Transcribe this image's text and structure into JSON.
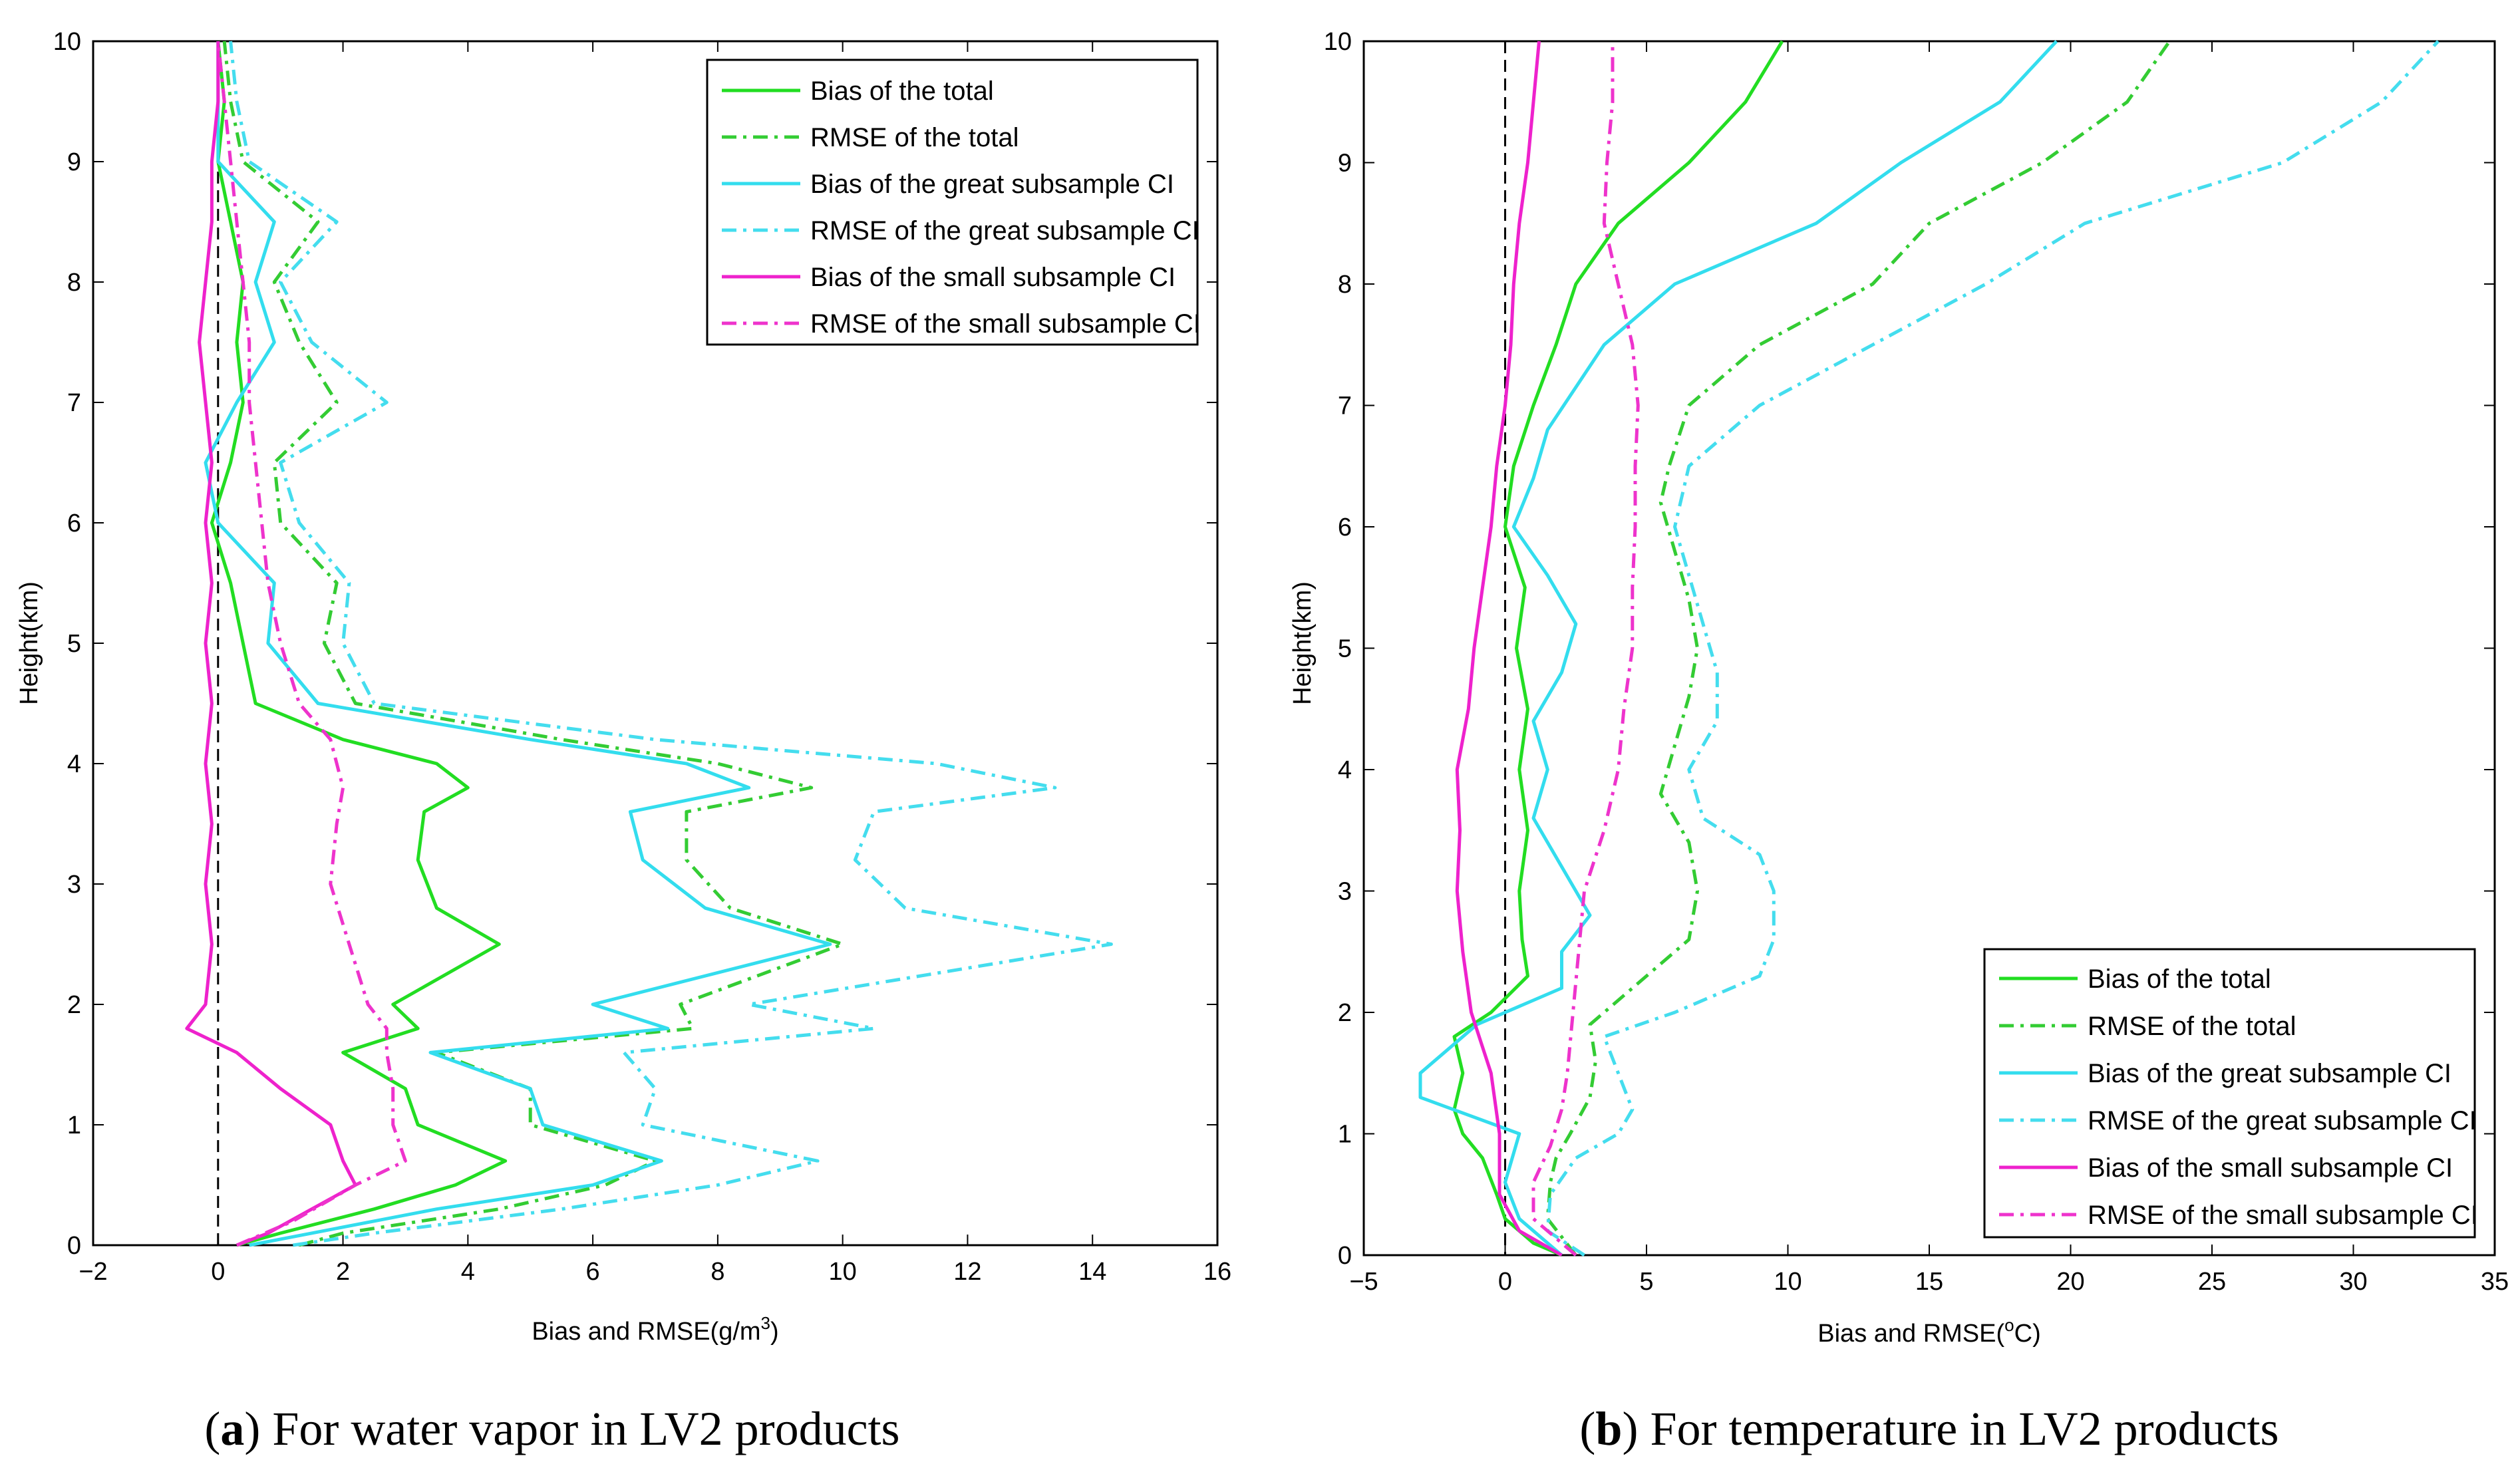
{
  "chart_data": [
    {
      "type": "line",
      "panel": "a",
      "caption_letter": "a",
      "caption_text": "For water vapor in LV2 products",
      "xlabel_main": "Bias and RMSE(g/m",
      "xlabel_sup": "3",
      "xlabel_tail": ")",
      "ylabel": "Height(km)",
      "xlim": [
        -2,
        16
      ],
      "ylim": [
        0,
        10
      ],
      "xticks": [
        "-2",
        "0",
        "2",
        "4",
        "6",
        "8",
        "10",
        "12",
        "14",
        "16"
      ],
      "yticks": [
        "0",
        "1",
        "2",
        "3",
        "4",
        "5",
        "6",
        "7",
        "8",
        "9",
        "10"
      ],
      "legend_position": "top-right",
      "zero_line": 0,
      "series": [
        {
          "name": "Bias of the total",
          "color": "#22dd22",
          "dash": "solid",
          "y": [
            0,
            0.1,
            0.3,
            0.5,
            0.7,
            1.0,
            1.3,
            1.6,
            1.8,
            2.0,
            2.5,
            2.8,
            3.2,
            3.6,
            3.8,
            4.0,
            4.2,
            4.5,
            5.0,
            5.5,
            6.0,
            6.5,
            7.0,
            7.5,
            8.0,
            8.5,
            9.0,
            9.5,
            10.0
          ],
          "x": [
            0.3,
            1.0,
            2.5,
            3.8,
            4.6,
            3.2,
            3.0,
            2.0,
            3.2,
            2.8,
            4.5,
            3.5,
            3.2,
            3.3,
            4.0,
            3.5,
            2.0,
            0.6,
            0.4,
            0.2,
            -0.1,
            0.2,
            0.4,
            0.3,
            0.4,
            0.2,
            0.0,
            0.1,
            0.0
          ]
        },
        {
          "name": "RMSE of the total",
          "color": "#33cc33",
          "dash": "dashdot",
          "y": [
            0,
            0.1,
            0.3,
            0.5,
            0.7,
            1.0,
            1.3,
            1.6,
            1.8,
            2.0,
            2.5,
            2.8,
            3.2,
            3.6,
            3.8,
            4.0,
            4.2,
            4.5,
            5.0,
            5.5,
            6.0,
            6.5,
            7.0,
            7.5,
            8.0,
            8.5,
            9.0,
            9.5,
            10.0
          ],
          "x": [
            1.3,
            2.0,
            4.5,
            6.2,
            7.0,
            5.0,
            5.0,
            3.5,
            7.6,
            7.4,
            10.0,
            8.2,
            7.5,
            7.5,
            9.5,
            8.0,
            5.5,
            2.2,
            1.7,
            1.9,
            1.0,
            0.9,
            1.9,
            1.3,
            0.9,
            1.6,
            0.4,
            0.2,
            0.1
          ]
        },
        {
          "name": "Bias of the great subsample CI",
          "color": "#33ddee",
          "dash": "solid",
          "y": [
            0,
            0.1,
            0.3,
            0.5,
            0.7,
            1.0,
            1.3,
            1.6,
            1.8,
            2.0,
            2.5,
            2.8,
            3.2,
            3.6,
            3.8,
            4.0,
            4.2,
            4.5,
            5.0,
            5.5,
            6.0,
            6.5,
            7.0,
            7.5,
            8.0,
            8.5,
            9.0,
            9.5,
            10.0
          ],
          "x": [
            0.5,
            1.5,
            3.5,
            6.0,
            7.1,
            5.2,
            5.0,
            3.4,
            7.2,
            6.0,
            9.8,
            7.8,
            6.8,
            6.6,
            8.5,
            7.5,
            5.0,
            1.6,
            0.8,
            0.9,
            0.0,
            -0.2,
            0.3,
            0.9,
            0.6,
            0.9,
            0.0,
            0.0,
            0.0
          ]
        },
        {
          "name": "RMSE of the great subsample CI",
          "color": "#44ddee",
          "dash": "dashdot",
          "y": [
            0,
            0.1,
            0.3,
            0.5,
            0.7,
            1.0,
            1.3,
            1.6,
            1.8,
            2.0,
            2.5,
            2.8,
            3.2,
            3.6,
            3.8,
            4.0,
            4.2,
            4.5,
            5.0,
            5.5,
            6.0,
            6.5,
            7.0,
            7.5,
            8.0,
            8.5,
            9.0,
            9.5,
            10.0
          ],
          "x": [
            1.2,
            2.5,
            5.5,
            8.0,
            9.6,
            6.8,
            7.0,
            6.5,
            10.5,
            8.5,
            14.3,
            11.0,
            10.2,
            10.5,
            13.4,
            11.5,
            7.0,
            2.5,
            2.0,
            2.1,
            1.3,
            1.0,
            2.7,
            1.5,
            1.0,
            1.9,
            0.5,
            0.3,
            0.2
          ]
        },
        {
          "name": "Bias of the small subsample CI",
          "color": "#ee22cc",
          "dash": "solid",
          "y": [
            0,
            0.1,
            0.3,
            0.5,
            0.7,
            1.0,
            1.3,
            1.6,
            1.8,
            2.0,
            2.5,
            3.0,
            3.5,
            4.0,
            4.5,
            5.0,
            5.5,
            6.0,
            6.5,
            7.0,
            7.5,
            8.0,
            8.5,
            9.0,
            9.5,
            10.0
          ],
          "x": [
            0.3,
            0.8,
            1.5,
            2.2,
            2.0,
            1.8,
            1.0,
            0.3,
            -0.5,
            -0.2,
            -0.1,
            -0.2,
            -0.1,
            -0.2,
            -0.1,
            -0.2,
            -0.1,
            -0.2,
            -0.1,
            -0.2,
            -0.3,
            -0.2,
            -0.1,
            -0.1,
            0.0,
            0.0
          ]
        },
        {
          "name": "RMSE of the small subsample CI",
          "color": "#ee33cc",
          "dash": "dashdot",
          "y": [
            0,
            0.2,
            0.5,
            0.7,
            1.0,
            1.3,
            1.6,
            1.8,
            2.0,
            2.5,
            3.0,
            3.5,
            3.8,
            4.2,
            4.5,
            5.0,
            5.5,
            6.0,
            6.5,
            7.0,
            7.5,
            8.0,
            8.5,
            9.0,
            9.5,
            10.0
          ],
          "x": [
            0.3,
            1.2,
            2.2,
            3.0,
            2.8,
            2.8,
            2.7,
            2.7,
            2.4,
            2.1,
            1.8,
            1.9,
            2.0,
            1.8,
            1.3,
            1.0,
            0.8,
            0.7,
            0.6,
            0.5,
            0.5,
            0.4,
            0.3,
            0.2,
            0.1,
            0.0
          ]
        }
      ]
    },
    {
      "type": "line",
      "panel": "b",
      "caption_letter": "b",
      "caption_text": "For temperature in LV2 products",
      "xlabel_main": "Bias and RMSE(",
      "xlabel_sup": "o",
      "xlabel_tail": "C)",
      "ylabel": "Height(km)",
      "xlim": [
        -5,
        35
      ],
      "ylim": [
        0,
        10
      ],
      "xticks": [
        "-5",
        "0",
        "5",
        "10",
        "15",
        "20",
        "25",
        "30",
        "35"
      ],
      "yticks": [
        "0",
        "1",
        "2",
        "3",
        "4",
        "5",
        "6",
        "7",
        "8",
        "9",
        "10"
      ],
      "legend_position": "bottom-right",
      "zero_line": 0,
      "series": [
        {
          "name": "Bias of the total",
          "color": "#22dd22",
          "dash": "solid",
          "y": [
            0,
            0.1,
            0.3,
            0.5,
            0.8,
            1.0,
            1.2,
            1.5,
            1.8,
            2.0,
            2.3,
            2.6,
            3.0,
            3.5,
            4.0,
            4.5,
            5.0,
            5.5,
            6.0,
            6.5,
            7.0,
            7.5,
            8.0,
            8.5,
            9.0,
            9.5,
            10.0
          ],
          "x": [
            2.0,
            1.0,
            0.0,
            -0.3,
            -0.8,
            -1.5,
            -1.8,
            -1.5,
            -1.8,
            -0.5,
            0.8,
            0.6,
            0.5,
            0.8,
            0.5,
            0.8,
            0.4,
            0.7,
            0.0,
            0.3,
            1.0,
            1.8,
            2.5,
            4.0,
            6.5,
            8.5,
            9.8
          ]
        },
        {
          "name": "RMSE of the total",
          "color": "#33cc33",
          "dash": "dashdot",
          "y": [
            0,
            0.3,
            0.6,
            0.8,
            1.0,
            1.3,
            1.6,
            1.9,
            2.2,
            2.6,
            3.0,
            3.4,
            3.8,
            4.2,
            4.6,
            5.0,
            5.4,
            5.8,
            6.2,
            6.5,
            7.0,
            7.5,
            8.0,
            8.5,
            9.0,
            9.5,
            10.0
          ],
          "x": [
            2.5,
            1.5,
            1.6,
            1.8,
            2.3,
            3.0,
            3.2,
            3.0,
            4.5,
            6.5,
            6.8,
            6.5,
            5.5,
            6.0,
            6.5,
            6.8,
            6.5,
            6.0,
            5.5,
            5.8,
            6.5,
            9.0,
            13.0,
            15.0,
            19.0,
            22.0,
            23.5
          ]
        },
        {
          "name": "Bias of the great subsample CI",
          "color": "#33ddee",
          "dash": "solid",
          "y": [
            0,
            0.3,
            0.6,
            1.0,
            1.3,
            1.5,
            1.7,
            1.9,
            2.2,
            2.5,
            2.8,
            3.2,
            3.6,
            4.0,
            4.4,
            4.8,
            5.2,
            5.6,
            6.0,
            6.4,
            6.8,
            7.5,
            8.0,
            8.5,
            9.0,
            9.5,
            10.0
          ],
          "x": [
            2.0,
            0.5,
            0.0,
            0.5,
            -3.0,
            -3.0,
            -2.0,
            -1.0,
            2.0,
            2.0,
            3.0,
            2.0,
            1.0,
            1.5,
            1.0,
            2.0,
            2.5,
            1.5,
            0.3,
            1.0,
            1.5,
            3.5,
            6.0,
            11.0,
            14.0,
            17.5,
            19.5
          ]
        },
        {
          "name": "RMSE of the great subsample CI",
          "color": "#44ddee",
          "dash": "dashdot",
          "y": [
            0,
            0.2,
            0.5,
            0.8,
            1.0,
            1.2,
            1.5,
            1.8,
            2.0,
            2.3,
            2.6,
            3.0,
            3.3,
            3.6,
            4.0,
            4.4,
            4.8,
            5.2,
            5.6,
            6.0,
            6.5,
            7.0,
            7.5,
            8.0,
            8.5,
            9.0,
            9.5,
            10.0
          ],
          "x": [
            2.8,
            1.5,
            1.6,
            2.5,
            4.0,
            4.5,
            4.0,
            3.5,
            6.0,
            9.0,
            9.5,
            9.5,
            9.0,
            7.0,
            6.5,
            7.5,
            7.5,
            7.0,
            6.5,
            6.0,
            6.5,
            9.0,
            13.0,
            17.0,
            20.5,
            27.5,
            31.0,
            33.0
          ]
        },
        {
          "name": "Bias of the small subsample CI",
          "color": "#ee22cc",
          "dash": "solid",
          "y": [
            0,
            0.2,
            0.5,
            1.0,
            1.5,
            2.0,
            2.5,
            3.0,
            3.5,
            4.0,
            4.5,
            5.0,
            5.5,
            6.0,
            6.5,
            7.0,
            7.5,
            8.0,
            8.5,
            9.0,
            9.5,
            10.0
          ],
          "x": [
            2.0,
            0.5,
            -0.2,
            -0.2,
            -0.5,
            -1.2,
            -1.5,
            -1.7,
            -1.6,
            -1.7,
            -1.3,
            -1.1,
            -0.8,
            -0.5,
            -0.3,
            0.0,
            0.2,
            0.3,
            0.5,
            0.8,
            1.0,
            1.2
          ]
        },
        {
          "name": "RMSE of the small subsample CI",
          "color": "#ee33cc",
          "dash": "dashdot",
          "y": [
            0,
            0.3,
            0.6,
            0.9,
            1.2,
            1.5,
            2.0,
            2.5,
            3.0,
            3.5,
            4.0,
            4.5,
            5.0,
            5.5,
            6.0,
            6.5,
            7.0,
            7.5,
            8.0,
            8.5,
            9.0,
            9.5,
            10.0
          ],
          "x": [
            2.5,
            1.0,
            1.0,
            1.6,
            2.0,
            2.2,
            2.4,
            2.6,
            2.8,
            3.5,
            4.0,
            4.2,
            4.5,
            4.5,
            4.6,
            4.6,
            4.7,
            4.5,
            4.0,
            3.5,
            3.6,
            3.8,
            3.8
          ]
        }
      ]
    }
  ]
}
